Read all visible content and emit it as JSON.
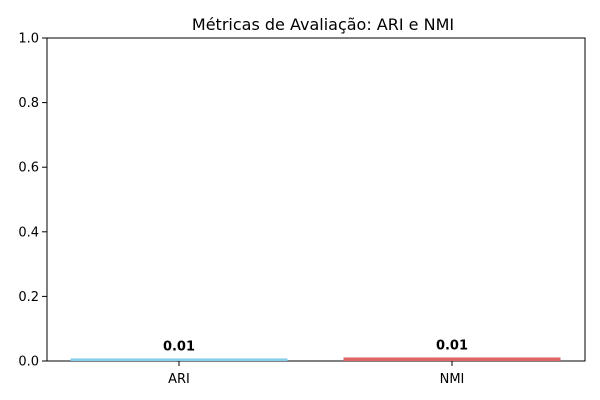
{
  "chart_data": {
    "type": "bar",
    "title": "Métricas de Avaliação: ARI e NMI",
    "xlabel": "",
    "ylabel": "",
    "categories": [
      "ARI",
      "NMI"
    ],
    "values": [
      0.008,
      0.011
    ],
    "value_labels": [
      "0.01",
      "0.01"
    ],
    "ylim": [
      0,
      1.0
    ],
    "yticks": [
      0.0,
      0.2,
      0.4,
      0.6,
      0.8,
      1.0
    ],
    "ytick_labels": [
      "0.0",
      "0.2",
      "0.4",
      "0.6",
      "0.8",
      "1.0"
    ],
    "colors": [
      "#87CEEB",
      "#E06666"
    ],
    "grid": false,
    "legend": "none"
  }
}
